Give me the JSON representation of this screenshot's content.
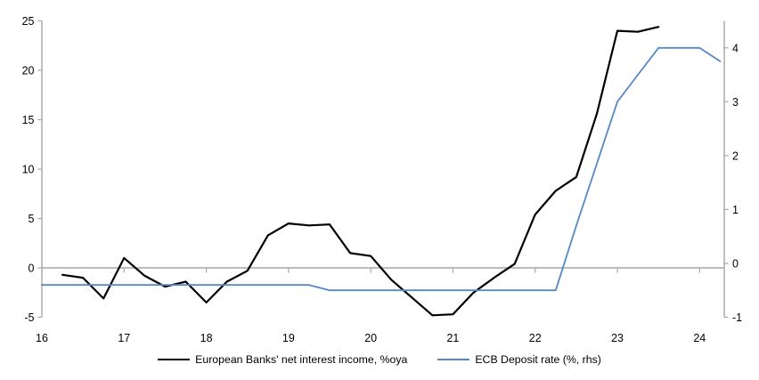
{
  "chart_data": {
    "type": "line",
    "title": "",
    "xlabel": "",
    "ylabel_left": "",
    "ylabel_right": "",
    "grid": "zero-line-only",
    "legend_position": "bottom-center",
    "x_axis": {
      "ticks": [
        16,
        17,
        18,
        19,
        20,
        21,
        22,
        23,
        24
      ],
      "range": [
        16,
        24.3
      ],
      "tick_marks_on": "zero-line",
      "labels_at": "bottom"
    },
    "left_axis": {
      "ticks": [
        25,
        20,
        15,
        10,
        5,
        0,
        -5
      ],
      "range": [
        -5,
        25
      ]
    },
    "right_axis": {
      "ticks": [
        4,
        3,
        2,
        1,
        0,
        -1
      ],
      "range": [
        -1,
        4.5
      ]
    },
    "series": [
      {
        "name": "European Banks' net interest income, %oya",
        "axis": "left",
        "color": "#000000",
        "stroke_width": 2.2,
        "x": [
          16.25,
          16.5,
          16.75,
          17,
          17.25,
          17.5,
          17.75,
          18,
          18.25,
          18.5,
          18.75,
          19,
          19.25,
          19.5,
          19.75,
          20,
          20.25,
          20.5,
          20.75,
          21,
          21.25,
          21.5,
          21.75,
          22,
          22.25,
          22.5,
          22.75,
          23,
          23.25,
          23.5
        ],
        "values": [
          -0.7,
          -1.0,
          -3.1,
          1.0,
          -0.8,
          -1.9,
          -1.4,
          -3.5,
          -1.4,
          -0.3,
          3.3,
          4.5,
          4.3,
          4.4,
          1.5,
          1.2,
          -1.2,
          -3.0,
          -4.8,
          -4.7,
          -2.5,
          -1.0,
          0.4,
          5.4,
          7.8,
          9.2,
          15.6,
          24.0,
          23.9,
          24.4
        ]
      },
      {
        "name": "ECB Deposit rate (%, rhs)",
        "axis": "right",
        "color": "#5588C6",
        "stroke_width": 1.8,
        "x": [
          16,
          16.25,
          16.5,
          16.75,
          17,
          17.25,
          17.5,
          17.75,
          18,
          18.25,
          18.5,
          18.75,
          19,
          19.25,
          19.5,
          19.75,
          20,
          20.25,
          20.5,
          20.75,
          21,
          21.25,
          21.5,
          21.75,
          22,
          22.25,
          22.5,
          22.75,
          23,
          23.25,
          23.5,
          23.75,
          24,
          24.25
        ],
        "values": [
          -0.4,
          -0.4,
          -0.4,
          -0.4,
          -0.4,
          -0.4,
          -0.4,
          -0.4,
          -0.4,
          -0.4,
          -0.4,
          -0.4,
          -0.4,
          -0.4,
          -0.5,
          -0.5,
          -0.5,
          -0.5,
          -0.5,
          -0.5,
          -0.5,
          -0.5,
          -0.5,
          -0.5,
          -0.5,
          -0.5,
          0.7,
          1.85,
          3.0,
          3.5,
          4.0,
          4.0,
          4.0,
          3.75
        ]
      }
    ]
  },
  "legend": {
    "items": [
      {
        "label": "European Banks' net interest income, %oya",
        "color": "#000000"
      },
      {
        "label": "ECB Deposit rate (%, rhs)",
        "color": "#5588C6"
      }
    ]
  },
  "colors": {
    "axis": "#a6a6a6",
    "text": "#000000",
    "background": "#ffffff"
  }
}
